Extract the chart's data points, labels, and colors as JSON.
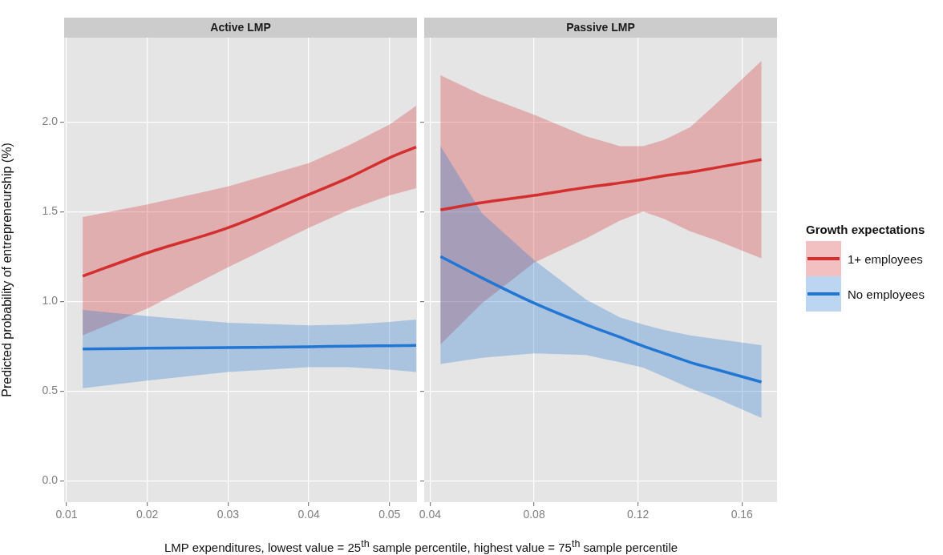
{
  "chart_data": [
    {
      "type": "line",
      "title": "Active LMP",
      "ylabel": "Predicted probability of entrepreneurship (%)",
      "xlabel": "LMP expenditures, lowest value =  25$^{th}$ sample percentile, highest value =  75$^{th}$ sample percentile",
      "xlim": [
        0.0097,
        0.0534
      ],
      "xticks": [
        {
          "value": 0.01,
          "label": "0.01"
        },
        {
          "value": 0.02,
          "label": "0.02"
        },
        {
          "value": 0.03,
          "label": "0.03"
        },
        {
          "value": 0.04,
          "label": "0.04"
        },
        {
          "value": 0.05,
          "label": "0.05"
        }
      ],
      "ylim": [
        -0.12,
        2.47
      ],
      "yticks": [
        {
          "value": 0,
          "label": "0.0"
        },
        {
          "value": 0.5,
          "label": "0.5"
        },
        {
          "value": 1,
          "label": "1.0"
        },
        {
          "value": 1.5,
          "label": "1.5"
        },
        {
          "value": 2,
          "label": "2.0"
        }
      ],
      "grid": true,
      "series": [
        {
          "color": "#d32f2f",
          "x": [
            0.012,
            0.02,
            0.03,
            0.04,
            0.045,
            0.05,
            0.0533
          ],
          "values": [
            1.14,
            1.27,
            1.41,
            1.595,
            1.69,
            1.8,
            1.86
          ],
          "lower": [
            0.81,
            0.96,
            1.19,
            1.41,
            1.51,
            1.59,
            1.63
          ],
          "upper": [
            1.47,
            1.54,
            1.64,
            1.77,
            1.87,
            1.985,
            2.09
          ]
        },
        {
          "color": "#2276d4",
          "x": [
            0.012,
            0.02,
            0.03,
            0.04,
            0.045,
            0.05,
            0.0533
          ],
          "values": [
            0.734,
            0.738,
            0.742,
            0.746,
            0.75,
            0.752,
            0.754
          ],
          "lower": [
            0.515,
            0.558,
            0.606,
            0.633,
            0.633,
            0.619,
            0.606
          ],
          "upper": [
            0.952,
            0.917,
            0.88,
            0.866,
            0.87,
            0.885,
            0.898
          ]
        }
      ]
    },
    {
      "type": "line",
      "title": "Passive LMP",
      "legend": "right",
      "legend_title": "Growth expectations",
      "tick_labels": "x",
      "xlim": [
        0.0377,
        0.1735
      ],
      "xticks": [
        {
          "value": 0.04,
          "label": "0.04"
        },
        {
          "value": 0.08,
          "label": "0.08"
        },
        {
          "value": 0.12,
          "label": "0.12"
        },
        {
          "value": 0.16,
          "label": "0.16"
        }
      ],
      "ylim": [
        -0.12,
        2.47
      ],
      "yticks": [
        {
          "value": 0,
          "label": null
        },
        {
          "value": 0.5,
          "label": null
        },
        {
          "value": 1,
          "label": null
        },
        {
          "value": 1.5,
          "label": null
        },
        {
          "value": 2,
          "label": null
        }
      ],
      "grid": true,
      "series": [
        {
          "name": "1+ employees",
          "color": "#d32f2f",
          "x": [
            0.044,
            0.06,
            0.08,
            0.1,
            0.113,
            0.122,
            0.13,
            0.14,
            0.15,
            0.1675
          ],
          "values": [
            1.51,
            1.55,
            1.59,
            1.635,
            1.66,
            1.68,
            1.7,
            1.72,
            1.745,
            1.79
          ],
          "lower": [
            0.76,
            0.99,
            1.215,
            1.35,
            1.45,
            1.5,
            1.46,
            1.39,
            1.34,
            1.24
          ],
          "upper": [
            2.26,
            2.15,
            2.04,
            1.92,
            1.865,
            1.865,
            1.9,
            1.97,
            2.1,
            2.34
          ]
        },
        {
          "name": "No employees",
          "color": "#2276d4",
          "x": [
            0.044,
            0.06,
            0.08,
            0.1,
            0.113,
            0.122,
            0.13,
            0.14,
            0.15,
            0.1675
          ],
          "values": [
            1.25,
            1.13,
            0.99,
            0.87,
            0.8,
            0.75,
            0.71,
            0.66,
            0.62,
            0.55
          ],
          "lower": [
            0.65,
            0.685,
            0.71,
            0.7,
            0.66,
            0.63,
            0.58,
            0.515,
            0.46,
            0.35
          ],
          "upper": [
            1.865,
            1.49,
            1.23,
            1.01,
            0.91,
            0.87,
            0.84,
            0.81,
            0.79,
            0.755
          ]
        }
      ]
    }
  ]
}
